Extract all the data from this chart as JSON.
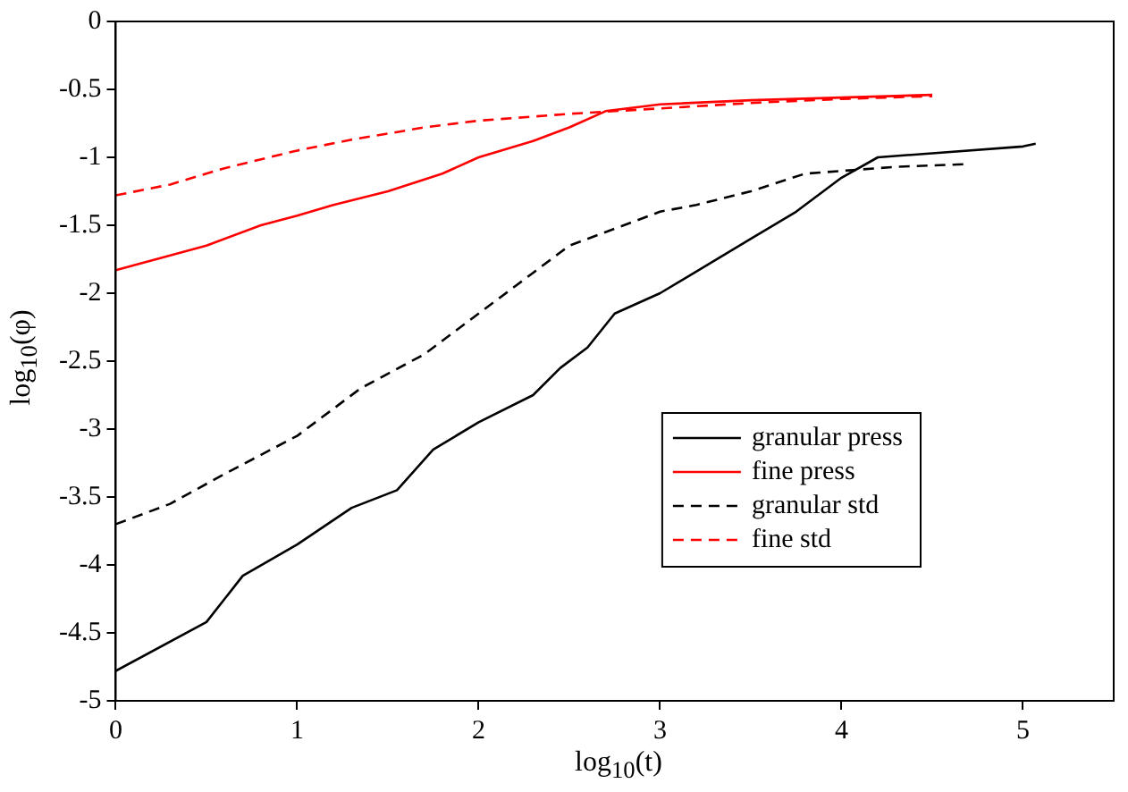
{
  "chart_data": {
    "type": "line",
    "xlabel": "log$_{10}$(t)",
    "ylabel": "log$_{10}$(φ)",
    "xlim": [
      0,
      5.5
    ],
    "xticks": [
      0,
      1,
      2,
      3,
      4,
      5
    ],
    "ylim": [
      -5,
      0
    ],
    "yticks": [
      -5,
      -4.5,
      -4,
      -3.5,
      -3,
      -2.5,
      -2,
      -1.5,
      -1,
      -0.5,
      0
    ],
    "grid": false,
    "legend": "bottom right",
    "marker": "none",
    "series": [
      {
        "name": "granular press",
        "color": "#000000",
        "line_style": "solid",
        "x": [
          0,
          0.5,
          0.7,
          1,
          1.3,
          1.55,
          1.75,
          2,
          2.3,
          2.45,
          2.6,
          2.75,
          3,
          3.25,
          3.5,
          3.75,
          4,
          4.2,
          4.5,
          5,
          5.07
        ],
        "values": [
          -4.78,
          -4.42,
          -4.08,
          -3.85,
          -3.58,
          -3.45,
          -3.15,
          -2.95,
          -2.75,
          -2.55,
          -2.4,
          -2.15,
          -2,
          -1.8,
          -1.6,
          -1.4,
          -1.15,
          -1,
          -0.97,
          -0.92,
          -0.9
        ]
      },
      {
        "name": "fine press",
        "color": "#ff0000",
        "line_style": "solid",
        "x": [
          0,
          0.5,
          0.8,
          1,
          1.2,
          1.5,
          1.8,
          2,
          2.3,
          2.5,
          2.7,
          3,
          3.5,
          4,
          4.5
        ],
        "values": [
          -1.83,
          -1.65,
          -1.5,
          -1.43,
          -1.35,
          -1.25,
          -1.12,
          -1,
          -0.88,
          -0.78,
          -0.66,
          -0.61,
          -0.58,
          -0.56,
          -0.54
        ]
      },
      {
        "name": "granular std",
        "color": "#000000",
        "line_style": "dashed",
        "x": [
          0,
          0.3,
          0.6,
          1,
          1.35,
          1.7,
          2,
          2.3,
          2.5,
          2.8,
          3,
          3.2,
          3.5,
          3.8,
          4,
          4.3,
          4.7
        ],
        "values": [
          -3.7,
          -3.55,
          -3.33,
          -3.05,
          -2.7,
          -2.45,
          -2.15,
          -1.85,
          -1.65,
          -1.5,
          -1.4,
          -1.35,
          -1.25,
          -1.12,
          -1.1,
          -1.07,
          -1.05
        ]
      },
      {
        "name": "fine std",
        "color": "#ff0000",
        "line_style": "dashed",
        "x": [
          0,
          0.3,
          0.6,
          1,
          1.3,
          1.7,
          2,
          2.5,
          3,
          3.5,
          4,
          4.5
        ],
        "values": [
          -1.28,
          -1.2,
          -1.08,
          -0.95,
          -0.87,
          -0.78,
          -0.73,
          -0.68,
          -0.64,
          -0.6,
          -0.57,
          -0.55
        ]
      }
    ]
  }
}
